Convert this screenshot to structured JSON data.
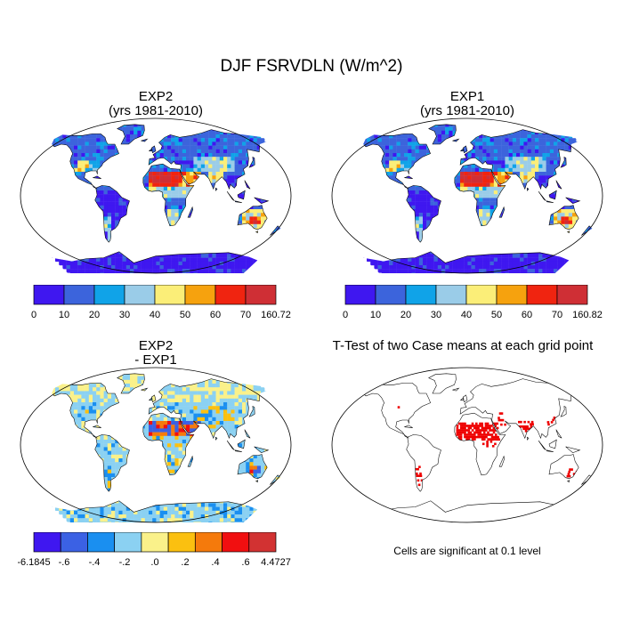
{
  "title": "DJF FSRVDLN (W/m^2)",
  "colors": {
    "abs_scale": [
      "#3f17f0",
      "#3c64dc",
      "#10a3e8",
      "#9acce8",
      "#fbee78",
      "#f6a20e",
      "#f02410",
      "#cf2f35"
    ],
    "diff_scale": [
      "#3f17f0",
      "#3b61e4",
      "#1a8ff0",
      "#8bd1f2",
      "#faf18a",
      "#fbc010",
      "#f57a0c",
      "#f10f10",
      "#d23232"
    ],
    "signif": "#ee0000",
    "coast": "#000000"
  },
  "chart_data": [
    {
      "type": "heatmap",
      "title": "EXP2",
      "subtitle": "(yrs 1981-2010)",
      "projection": "robinson",
      "colorbar_labels": [
        "0",
        "10",
        "20",
        "30",
        "40",
        "50",
        "60",
        "70",
        "160.72"
      ],
      "colorbar_levels": [
        0,
        10,
        20,
        30,
        40,
        50,
        60,
        70,
        160.72
      ]
    },
    {
      "type": "heatmap",
      "title": "EXP1",
      "subtitle": "(yrs 1981-2010)",
      "projection": "robinson",
      "colorbar_labels": [
        "0",
        "10",
        "20",
        "30",
        "40",
        "50",
        "60",
        "70",
        "160.82"
      ],
      "colorbar_levels": [
        0,
        10,
        20,
        30,
        40,
        50,
        60,
        70,
        160.82
      ]
    },
    {
      "type": "heatmap",
      "title": "EXP2",
      "subtitle": "- EXP1",
      "projection": "robinson",
      "colorbar_labels": [
        "-6.1845",
        "-.6",
        "-.4",
        "-.2",
        ".0",
        ".2",
        ".4",
        ".6",
        "4.4727"
      ],
      "colorbar_levels": [
        -6.1845,
        -0.6,
        -0.4,
        -0.2,
        0.0,
        0.2,
        0.4,
        0.6,
        4.4727
      ]
    },
    {
      "type": "heatmap",
      "title": "T-Test of two Case means at each grid point",
      "projection": "robinson",
      "note": "Cells are significant at 0.1 level"
    }
  ]
}
